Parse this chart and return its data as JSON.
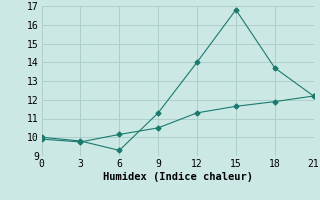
{
  "line1_x": [
    0,
    3,
    6,
    9,
    12,
    15,
    18,
    21
  ],
  "line1_y": [
    10.0,
    9.8,
    9.3,
    11.3,
    14.0,
    16.8,
    13.7,
    12.2
  ],
  "line2_x": [
    0,
    3,
    6,
    9,
    12,
    15,
    18,
    21
  ],
  "line2_y": [
    9.9,
    9.75,
    10.15,
    10.5,
    11.3,
    11.65,
    11.9,
    12.2
  ],
  "line_color": "#1a7a6e",
  "bg_color": "#cce8e4",
  "xlabel": "Humidex (Indice chaleur)",
  "xlim": [
    0,
    21
  ],
  "ylim": [
    9,
    17
  ],
  "xticks": [
    0,
    3,
    6,
    9,
    12,
    15,
    18,
    21
  ],
  "yticks": [
    9,
    10,
    11,
    12,
    13,
    14,
    15,
    16,
    17
  ],
  "grid_color": "#aecfcc",
  "marker": "D",
  "markersize": 2.5,
  "linewidth": 0.8,
  "xlabel_fontsize": 7.5,
  "tick_fontsize": 7
}
